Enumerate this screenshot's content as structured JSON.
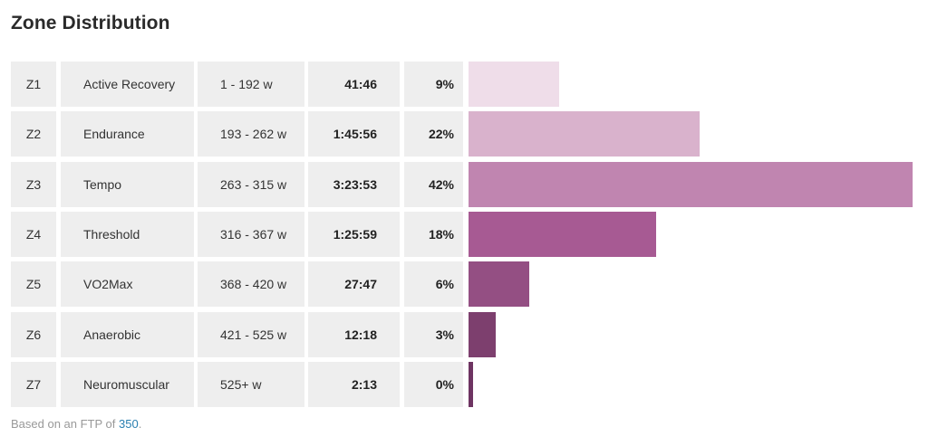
{
  "title": "Zone Distribution",
  "chart_data": {
    "type": "bar",
    "orientation": "horizontal",
    "title": "Zone Distribution",
    "categories": [
      "Z1",
      "Z2",
      "Z3",
      "Z4",
      "Z5",
      "Z6",
      "Z7"
    ],
    "rows": [
      {
        "zone": "Z1",
        "name": "Active Recovery",
        "range": "1 - 192 w",
        "time": "41:46",
        "percent_label": "9%",
        "seconds": 2506,
        "color": "#efdde9"
      },
      {
        "zone": "Z2",
        "name": "Endurance",
        "range": "193 - 262 w",
        "time": "1:45:56",
        "percent_label": "22%",
        "seconds": 6356,
        "color": "#d9b2cc"
      },
      {
        "zone": "Z3",
        "name": "Tempo",
        "range": "263 - 315 w",
        "time": "3:23:53",
        "percent_label": "42%",
        "seconds": 12233,
        "color": "#c085b0"
      },
      {
        "zone": "Z4",
        "name": "Threshold",
        "range": "316 - 367 w",
        "time": "1:25:59",
        "percent_label": "18%",
        "seconds": 5159,
        "color": "#a75a93"
      },
      {
        "zone": "Z5",
        "name": "VO2Max",
        "range": "368 - 420 w",
        "time": "27:47",
        "percent_label": "6%",
        "seconds": 1667,
        "color": "#944f83"
      },
      {
        "zone": "Z6",
        "name": "Anaerobic",
        "range": "421 - 525 w",
        "time": "12:18",
        "percent_label": "3%",
        "seconds": 738,
        "color": "#7d3f6e"
      },
      {
        "zone": "Z7",
        "name": "Neuromuscular",
        "range": "525+ w",
        "time": "2:13",
        "percent_label": "0%",
        "seconds": 133,
        "color": "#6e3462"
      }
    ],
    "grid": false,
    "legend": "none"
  },
  "footnote": {
    "prefix": "Based on an FTP of ",
    "ftp_value": "350",
    "suffix": "."
  }
}
